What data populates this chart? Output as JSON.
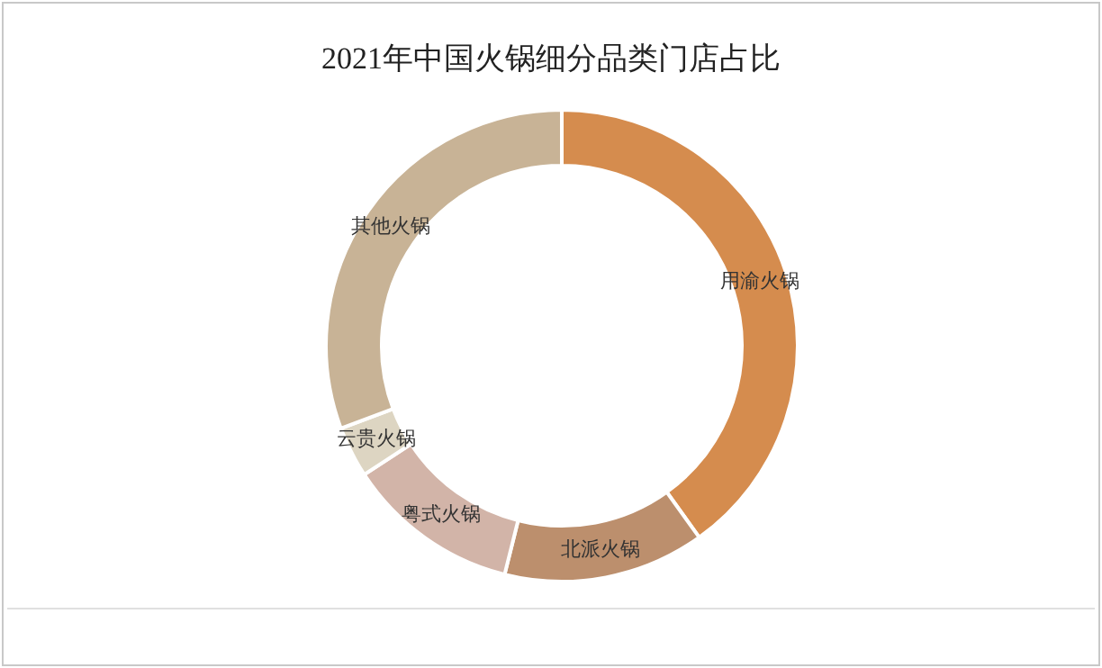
{
  "chart_data": {
    "type": "donut",
    "title": "2021年中国火锅细分品类门店占比",
    "categories": [
      "用渝火锅",
      "北派火锅",
      "粤式火锅",
      "云贵火锅",
      "其他火锅"
    ],
    "values": [
      40.1,
      13.8,
      11.9,
      3.5,
      30.7
    ],
    "colors": [
      "#d58c4e",
      "#bc8f6d",
      "#d2b4a8",
      "#ddd5c2",
      "#c8b396"
    ]
  }
}
